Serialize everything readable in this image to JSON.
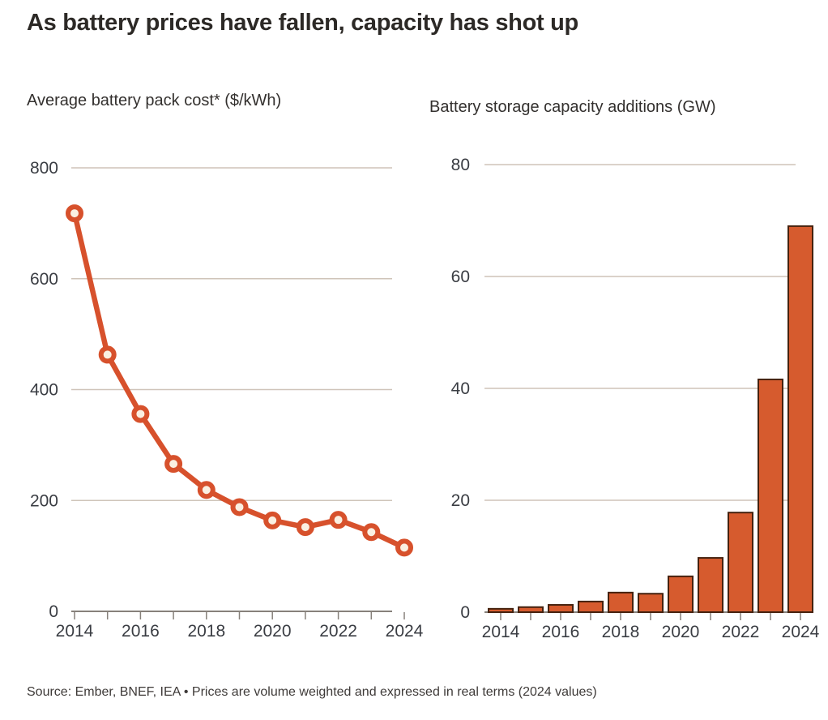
{
  "header": {
    "title": "As battery prices have fallen, capacity has shot up"
  },
  "footer": {
    "source": "Source: Ember, BNEF, IEA • Prices are volume weighted and expressed in real terms (2024 values)"
  },
  "colors": {
    "background": "#ffffff",
    "accent_line": "#d7512c",
    "marker_inner": "#faf0e2",
    "bar_fill": "#d65b2e",
    "bar_stroke": "#45220f",
    "grid": "#cfc4b9",
    "axis": "#87817b",
    "tick_label": "#3a3d43",
    "heading_text": "#33302e",
    "source_text": "#3e3a38"
  },
  "chart_data": [
    {
      "type": "line",
      "title": "Average battery pack cost* ($/kWh)",
      "x": [
        2014,
        2015,
        2016,
        2017,
        2018,
        2019,
        2020,
        2021,
        2022,
        2023,
        2024
      ],
      "values": [
        718,
        463,
        356,
        266,
        219,
        188,
        164,
        152,
        165,
        143,
        115
      ],
      "ylim": [
        0,
        800
      ],
      "yticks": [
        0,
        200,
        400,
        600,
        800
      ],
      "xtick_labels": [
        "2014",
        "2016",
        "2018",
        "2020",
        "2022",
        "2024"
      ],
      "grid": true,
      "legend": "none",
      "right_edge_clipped": true
    },
    {
      "type": "bar",
      "title": "Battery storage capacity additions (GW)",
      "x": [
        2014,
        2015,
        2016,
        2017,
        2018,
        2019,
        2020,
        2021,
        2022,
        2023,
        2024
      ],
      "values": [
        0.6,
        0.9,
        1.3,
        1.9,
        3.5,
        3.3,
        6.4,
        9.7,
        17.8,
        41.6,
        69
      ],
      "ylim": [
        0,
        80
      ],
      "yticks": [
        0,
        20,
        40,
        60,
        80
      ],
      "xtick_labels": [
        "2014",
        "2016",
        "2018",
        "2020",
        "2022",
        "2024"
      ],
      "grid": true,
      "legend": "none",
      "right_edge_clipped": true
    }
  ]
}
